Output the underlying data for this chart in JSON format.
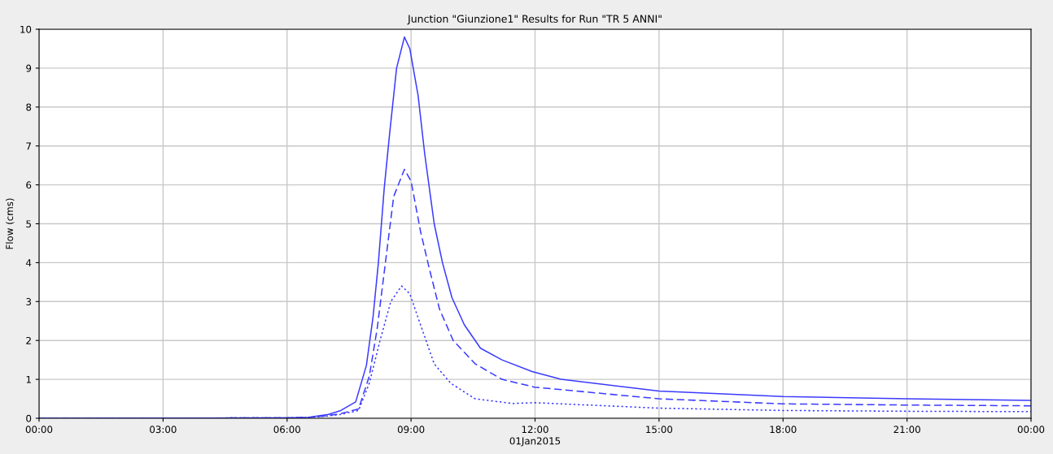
{
  "chart_data": {
    "type": "line",
    "title": "Junction \"Giunzione1\" Results for Run \"TR 5 ANNI\"",
    "ylabel": "Flow (cms)",
    "xlabel": "01Jan2015",
    "xlim": [
      0,
      24
    ],
    "xticks": [
      {
        "value": 0,
        "label": "00:00"
      },
      {
        "value": 3,
        "label": "03:00"
      },
      {
        "value": 6,
        "label": "06:00"
      },
      {
        "value": 9,
        "label": "09:00"
      },
      {
        "value": 12,
        "label": "12:00"
      },
      {
        "value": 15,
        "label": "15:00"
      },
      {
        "value": 18,
        "label": "18:00"
      },
      {
        "value": 21,
        "label": "21:00"
      },
      {
        "value": 24,
        "label": "00:00"
      }
    ],
    "ylim": [
      0,
      10
    ],
    "yticks": [
      0,
      1,
      2,
      3,
      4,
      5,
      6,
      7,
      8,
      9,
      10
    ],
    "grid": true,
    "marker": "none",
    "series": [
      {
        "color": "#3a3aff",
        "line_style": "solid",
        "x": [
          0,
          6,
          6.5,
          7,
          7.3,
          7.66,
          7.92,
          8.08,
          8.21,
          8.35,
          8.48,
          8.65,
          8.84,
          8.97,
          9.17,
          9.33,
          9.56,
          9.76,
          9.99,
          10.29,
          10.68,
          11.2,
          11.93,
          12.63,
          15,
          18,
          21,
          24
        ],
        "values": [
          0,
          0.01,
          0.02,
          0.1,
          0.2,
          0.42,
          1.36,
          2.6,
          4.0,
          5.9,
          7.3,
          9.0,
          9.8,
          9.5,
          8.3,
          6.8,
          5.0,
          4.0,
          3.1,
          2.4,
          1.8,
          1.5,
          1.2,
          1.0,
          0.7,
          0.56,
          0.5,
          0.46
        ]
      },
      {
        "color": "#3a3aff",
        "line_style": "dashed",
        "x": [
          0,
          6,
          6.5,
          7,
          7.3,
          7.73,
          7.99,
          8.18,
          8.38,
          8.58,
          8.84,
          9.0,
          9.23,
          9.43,
          9.69,
          10.02,
          10.55,
          11.2,
          11.99,
          15,
          18,
          21,
          24
        ],
        "values": [
          0,
          0.01,
          0.02,
          0.07,
          0.12,
          0.24,
          1.08,
          2.3,
          4.0,
          5.7,
          6.4,
          6.1,
          4.8,
          3.9,
          2.8,
          2.0,
          1.4,
          1.0,
          0.8,
          0.5,
          0.37,
          0.34,
          0.32
        ]
      },
      {
        "color": "#3a3aff",
        "line_style": "dotted",
        "x": [
          0,
          6,
          6.5,
          7,
          7.3,
          7.73,
          7.99,
          8.25,
          8.51,
          8.77,
          8.97,
          9.23,
          9.56,
          9.96,
          10.55,
          11.46,
          12,
          15,
          18,
          21,
          24
        ],
        "values": [
          0,
          0.01,
          0.02,
          0.06,
          0.1,
          0.2,
          0.9,
          2.0,
          3.0,
          3.4,
          3.2,
          2.4,
          1.4,
          0.9,
          0.5,
          0.38,
          0.4,
          0.26,
          0.2,
          0.18,
          0.17
        ]
      }
    ]
  }
}
